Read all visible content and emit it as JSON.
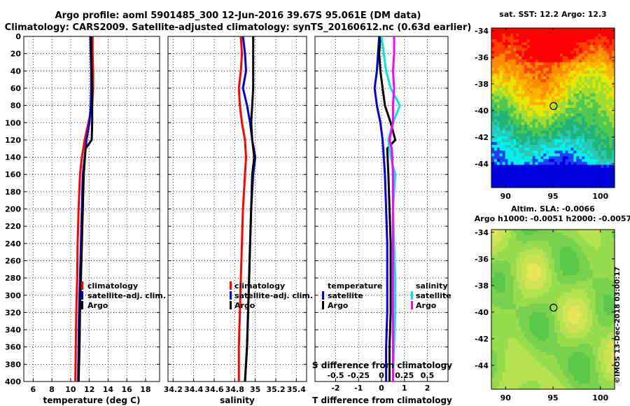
{
  "header": {
    "title_line1": "Argo profile: aoml 5901485_300 12-Jun-2016 39.67S 95.061E (DM data)",
    "title_line2": "Climatology: CARS2009. Satellite-adjusted climatology: synTS_20160612.nc (0.63d earlier)"
  },
  "colors": {
    "climatology": "#ff0000",
    "satellite_adj": "#0000dd",
    "argo": "#000000",
    "sal_satellite": "#00e5e5",
    "sal_argo": "#ff00ff"
  },
  "chart_data": [
    {
      "type": "line",
      "id": "temperature",
      "xlabel": "temperature (deg C)",
      "ylabel": "",
      "xlim": [
        5,
        19.5
      ],
      "ylim": [
        0,
        400
      ],
      "xticks": [
        6,
        8,
        10,
        12,
        14,
        16,
        18
      ],
      "xtick_labels": [
        "6",
        "8",
        "10",
        "12",
        "14",
        "16",
        "18"
      ],
      "yticks": [
        0,
        20,
        40,
        60,
        80,
        100,
        120,
        140,
        160,
        180,
        200,
        220,
        240,
        260,
        280,
        300,
        320,
        340,
        360,
        380,
        400
      ],
      "ytick_labels": [
        "0",
        "20",
        "40",
        "60",
        "80",
        "100",
        "120",
        "140",
        "160",
        "180",
        "200",
        "220",
        "240",
        "260",
        "280",
        "300",
        "320",
        "340",
        "360",
        "380",
        "400"
      ],
      "legend": {
        "entries": [
          "climatology",
          "satellite-adj. clim.",
          "Argo"
        ],
        "position": "lower-right"
      },
      "series": [
        {
          "name": "climatology",
          "color": "#ff0000",
          "x": [
            12.35,
            12.35,
            12.4,
            12.4,
            12.3,
            11.9,
            11.5,
            11.2,
            11.0,
            10.85,
            10.75,
            10.7,
            10.6,
            10.55,
            10.5
          ],
          "y": [
            0,
            20,
            40,
            60,
            80,
            100,
            120,
            140,
            160,
            200,
            240,
            280,
            320,
            360,
            400
          ]
        },
        {
          "name": "satellite-adj. clim.",
          "color": "#0000dd",
          "x": [
            12.1,
            12.15,
            12.2,
            12.2,
            12.15,
            12.0,
            11.7,
            11.5,
            11.3,
            11.2,
            11.1,
            11.0,
            10.9,
            10.85,
            10.8
          ],
          "y": [
            0,
            20,
            40,
            60,
            80,
            100,
            120,
            140,
            160,
            200,
            240,
            280,
            320,
            360,
            400
          ]
        },
        {
          "name": "Argo",
          "color": "#000000",
          "x": [
            12.2,
            12.2,
            12.25,
            12.3,
            12.3,
            12.3,
            12.25,
            11.6,
            11.4,
            11.3,
            11.2,
            11.1,
            11.0,
            10.95,
            10.85
          ],
          "y": [
            0,
            20,
            40,
            60,
            80,
            100,
            120,
            130,
            160,
            200,
            240,
            280,
            320,
            360,
            400
          ]
        }
      ]
    },
    {
      "type": "line",
      "id": "salinity",
      "xlabel": "salinity",
      "ylabel": "",
      "xlim": [
        34.15,
        35.5
      ],
      "ylim": [
        0,
        400
      ],
      "xticks": [
        34.2,
        34.4,
        34.6,
        34.8,
        35,
        35.2,
        35.4
      ],
      "xtick_labels": [
        "34.2",
        "34.4",
        "34.6",
        "34.8",
        "35",
        "35.2",
        "35.4"
      ],
      "yticks": [
        0,
        20,
        40,
        60,
        80,
        100,
        120,
        140,
        160,
        180,
        200,
        220,
        240,
        260,
        280,
        300,
        320,
        340,
        360,
        380,
        400
      ],
      "legend": {
        "entries": [
          "climatology",
          "satellite-adj. clim.",
          "Argo"
        ],
        "position": "lower-right"
      },
      "series": [
        {
          "name": "climatology",
          "color": "#ff0000",
          "x": [
            34.86,
            34.87,
            34.86,
            34.84,
            34.85,
            34.87,
            34.9,
            34.91,
            34.9,
            34.88,
            34.87,
            34.86,
            34.85,
            34.84,
            34.84
          ],
          "y": [
            0,
            20,
            40,
            60,
            80,
            100,
            120,
            140,
            160,
            200,
            240,
            280,
            320,
            360,
            400
          ]
        },
        {
          "name": "satellite-adj. clim.",
          "color": "#0000dd",
          "x": [
            34.88,
            34.9,
            34.91,
            34.88,
            34.92,
            34.95,
            34.97,
            35.0,
            34.98,
            34.96,
            34.95,
            34.94,
            34.93,
            34.92,
            34.9
          ],
          "y": [
            0,
            20,
            40,
            60,
            80,
            100,
            120,
            140,
            160,
            200,
            240,
            280,
            320,
            360,
            400
          ]
        },
        {
          "name": "Argo",
          "color": "#000000",
          "x": [
            34.98,
            34.98,
            34.98,
            34.98,
            34.97,
            34.96,
            34.97,
            34.99,
            34.97,
            34.96,
            34.95,
            34.94,
            34.93,
            34.92,
            34.9
          ],
          "y": [
            0,
            20,
            40,
            60,
            80,
            100,
            120,
            140,
            160,
            200,
            240,
            280,
            320,
            360,
            400
          ]
        }
      ]
    },
    {
      "type": "line",
      "id": "difference",
      "xlabel": "T difference from climatology",
      "xlabel_top": "S difference from climatology",
      "xlim": [
        -2.9,
        2.9
      ],
      "ylim": [
        0,
        400
      ],
      "xticks": [
        -2,
        -1,
        0,
        1,
        2
      ],
      "xtick_labels": [
        "-2",
        "-1",
        "0",
        "1",
        "2"
      ],
      "sticks_pos": [
        -2,
        -1,
        0,
        1,
        2
      ],
      "sticks_labels": [
        "-0.5",
        "-0.25",
        "0",
        "0.25",
        "0.5"
      ],
      "yticks": [
        0,
        20,
        40,
        60,
        80,
        100,
        120,
        140,
        160,
        180,
        200,
        220,
        240,
        260,
        280,
        300,
        320,
        340,
        360,
        380,
        400
      ],
      "legend": {
        "temperature_heading": "temperature",
        "salinity_heading": "salinity",
        "entries_left": [
          "satellite",
          "Argo"
        ],
        "entries_right": [
          "satellite",
          "Argo"
        ]
      },
      "series": [
        {
          "name": "temperature satellite",
          "color": "#0000dd",
          "x": [
            -0.1,
            -0.15,
            -0.2,
            -0.3,
            -0.2,
            -0.05,
            0.05,
            0.1,
            0.15,
            0.2,
            0.25,
            0.25,
            0.25,
            0.2,
            0.2
          ],
          "y": [
            0,
            20,
            40,
            60,
            80,
            100,
            120,
            140,
            160,
            200,
            240,
            280,
            320,
            360,
            400
          ]
        },
        {
          "name": "temperature Argo",
          "color": "#000000",
          "x": [
            -0.05,
            -0.1,
            -0.05,
            0.05,
            0.15,
            0.4,
            0.6,
            0.25,
            0.3,
            0.35,
            0.4,
            0.4,
            0.4,
            0.35,
            0.35
          ],
          "y": [
            0,
            20,
            40,
            60,
            80,
            100,
            120,
            130,
            160,
            200,
            240,
            280,
            320,
            360,
            400
          ]
        },
        {
          "name": "salinity satellite",
          "color": "#00e5e5",
          "x": [
            0.0,
            0.1,
            0.2,
            0.4,
            0.8,
            0.5,
            0.3,
            0.4,
            0.6,
            0.5,
            0.55,
            0.6,
            0.6,
            0.55,
            0.5
          ],
          "y": [
            0,
            20,
            40,
            60,
            80,
            100,
            120,
            140,
            160,
            200,
            240,
            280,
            320,
            360,
            400
          ]
        },
        {
          "name": "salinity Argo",
          "color": "#ff00ff",
          "x": [
            0.55,
            0.55,
            0.5,
            0.55,
            0.5,
            0.5,
            0.35,
            0.45,
            0.5,
            0.5,
            0.5,
            0.5,
            0.5,
            0.5,
            0.5
          ],
          "y": [
            0,
            20,
            40,
            60,
            80,
            100,
            120,
            130,
            160,
            200,
            240,
            280,
            320,
            360,
            400
          ]
        }
      ]
    },
    {
      "type": "heatmap",
      "id": "sst_map",
      "title": "sat. SST: 12.2 Argo: 12.3",
      "xlim": [
        88.5,
        101.5
      ],
      "ylim": [
        -45.8,
        -33.8
      ],
      "xticks": [
        90,
        95,
        100
      ],
      "xtick_labels": [
        "90",
        "95",
        "100"
      ],
      "yticks": [
        -34,
        -36,
        -38,
        -40,
        -42,
        -44
      ],
      "ytick_labels": [
        "-34",
        "-36",
        "-38",
        "-40",
        "-42",
        "-44"
      ],
      "marker": {
        "lon": 95.061,
        "lat": -39.67
      }
    },
    {
      "type": "heatmap",
      "id": "sla_map",
      "title_line1": "Altim. SLA: -0.0066",
      "title_line2": "Argo h1000: -0.0051 h2000: -0.0057",
      "xlim": [
        88.5,
        101.5
      ],
      "ylim": [
        -45.8,
        -33.8
      ],
      "xticks": [
        90,
        95,
        100
      ],
      "xtick_labels": [
        "90",
        "95",
        "100"
      ],
      "yticks": [
        -34,
        -36,
        -38,
        -40,
        -42,
        -44
      ],
      "ytick_labels": [
        "-34",
        "-36",
        "-38",
        "-40",
        "-42",
        "-44"
      ],
      "marker": {
        "lon": 95.061,
        "lat": -39.67
      }
    }
  ],
  "credit": "©IMOS 13-Dec-2018 03:00:17"
}
